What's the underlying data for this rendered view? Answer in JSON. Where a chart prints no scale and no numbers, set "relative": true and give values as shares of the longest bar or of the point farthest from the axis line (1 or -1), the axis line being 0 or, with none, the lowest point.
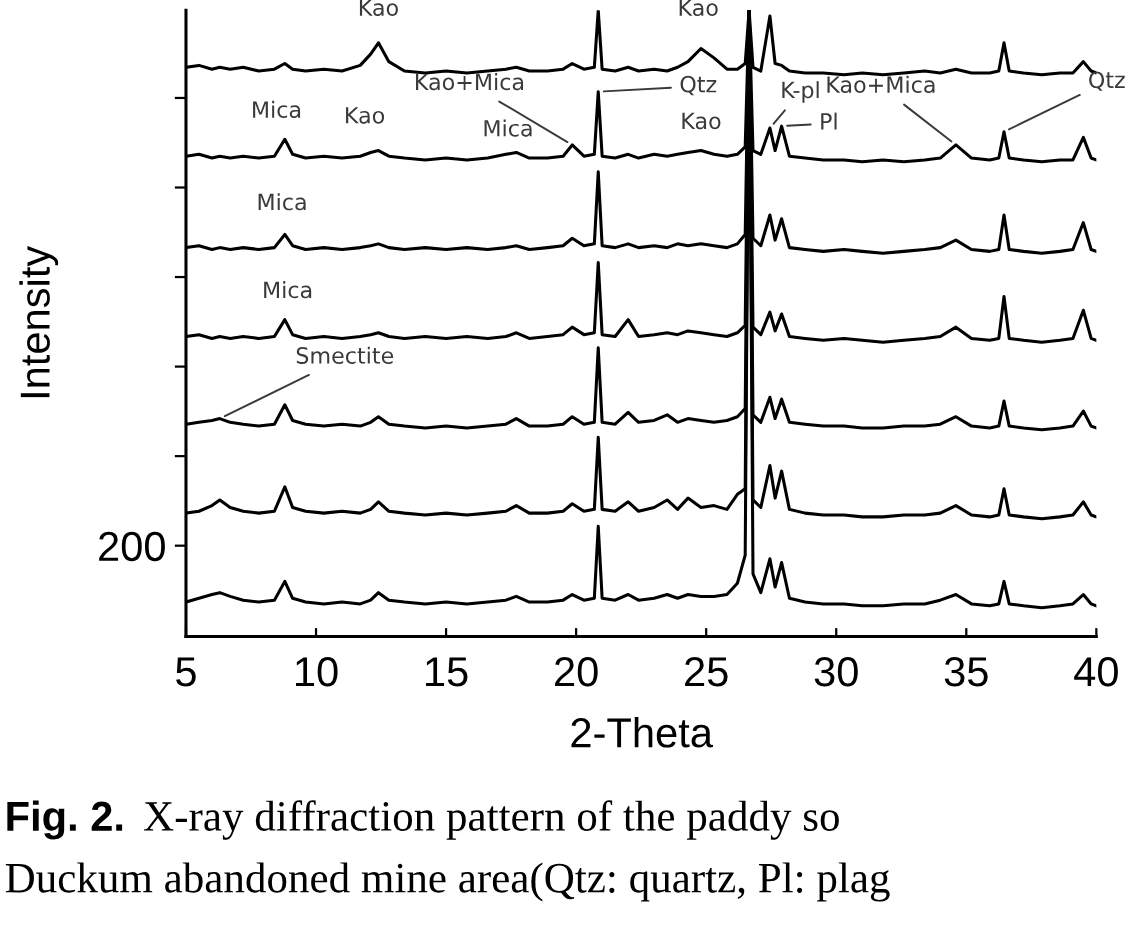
{
  "chart_data": {
    "type": "line",
    "xlabel": "2-Theta",
    "ylabel": "Intensity",
    "relative": true,
    "xlim": [
      5,
      40
    ],
    "xticks": [
      5,
      10,
      15,
      20,
      25,
      30,
      35,
      40
    ],
    "x": [
      5.0,
      5.5,
      6.0,
      6.3,
      6.7,
      7.2,
      7.8,
      8.4,
      8.8,
      9.1,
      9.6,
      10.3,
      11.0,
      11.7,
      12.1,
      12.4,
      12.8,
      13.4,
      14.2,
      15.0,
      15.8,
      16.6,
      17.3,
      17.7,
      18.2,
      18.9,
      19.5,
      19.85,
      20.3,
      20.7,
      20.85,
      21.0,
      21.5,
      22.0,
      22.4,
      23.0,
      23.5,
      23.9,
      24.3,
      24.8,
      25.3,
      25.8,
      26.2,
      26.5,
      26.65,
      26.8,
      27.1,
      27.45,
      27.65,
      27.9,
      28.2,
      28.8,
      29.5,
      30.3,
      31.0,
      31.8,
      32.6,
      33.4,
      34.0,
      34.6,
      35.2,
      35.9,
      36.25,
      36.45,
      36.65,
      37.2,
      37.9,
      38.6,
      39.1,
      39.5,
      39.8,
      40.0
    ],
    "series": [
      {
        "color": "#000000",
        "values": [
          0.909,
          0.912,
          0.906,
          0.909,
          0.906,
          0.909,
          0.903,
          0.906,
          0.915,
          0.906,
          0.903,
          0.906,
          0.903,
          0.912,
          0.93,
          0.948,
          0.918,
          0.903,
          0.9,
          0.903,
          0.9,
          0.903,
          0.906,
          0.909,
          0.903,
          0.903,
          0.906,
          0.915,
          0.906,
          0.909,
          1.0,
          0.906,
          0.903,
          0.909,
          0.903,
          0.906,
          0.903,
          0.909,
          0.918,
          0.939,
          0.924,
          0.906,
          0.906,
          0.915,
          1.0,
          0.909,
          0.903,
          0.991,
          0.915,
          0.912,
          0.903,
          0.9,
          0.9,
          0.897,
          0.9,
          0.897,
          0.9,
          0.903,
          0.9,
          0.906,
          0.9,
          0.9,
          0.903,
          0.948,
          0.903,
          0.9,
          0.897,
          0.9,
          0.9,
          0.918,
          0.903,
          0.9
        ]
      },
      {
        "color": "#000000",
        "values": [
          0.767,
          0.77,
          0.764,
          0.767,
          0.764,
          0.767,
          0.764,
          0.767,
          0.794,
          0.77,
          0.764,
          0.767,
          0.764,
          0.767,
          0.773,
          0.776,
          0.767,
          0.764,
          0.761,
          0.764,
          0.761,
          0.764,
          0.77,
          0.773,
          0.764,
          0.764,
          0.767,
          0.785,
          0.767,
          0.77,
          0.87,
          0.767,
          0.764,
          0.77,
          0.764,
          0.77,
          0.767,
          0.77,
          0.773,
          0.776,
          0.77,
          0.767,
          0.77,
          0.782,
          1.0,
          0.776,
          0.77,
          0.812,
          0.776,
          0.815,
          0.767,
          0.764,
          0.761,
          0.761,
          0.758,
          0.761,
          0.758,
          0.761,
          0.764,
          0.785,
          0.764,
          0.761,
          0.764,
          0.806,
          0.764,
          0.761,
          0.758,
          0.761,
          0.761,
          0.797,
          0.764,
          0.761
        ]
      },
      {
        "color": "#000000",
        "values": [
          0.621,
          0.624,
          0.618,
          0.621,
          0.618,
          0.621,
          0.618,
          0.621,
          0.642,
          0.624,
          0.618,
          0.621,
          0.618,
          0.621,
          0.624,
          0.627,
          0.621,
          0.618,
          0.621,
          0.618,
          0.621,
          0.618,
          0.621,
          0.624,
          0.618,
          0.621,
          0.624,
          0.636,
          0.624,
          0.627,
          0.742,
          0.624,
          0.621,
          0.627,
          0.621,
          0.624,
          0.621,
          0.627,
          0.624,
          0.627,
          0.624,
          0.621,
          0.627,
          0.642,
          1.0,
          0.636,
          0.624,
          0.673,
          0.633,
          0.667,
          0.621,
          0.618,
          0.615,
          0.618,
          0.615,
          0.612,
          0.615,
          0.618,
          0.621,
          0.633,
          0.618,
          0.615,
          0.618,
          0.673,
          0.618,
          0.615,
          0.612,
          0.615,
          0.618,
          0.661,
          0.618,
          0.615
        ]
      },
      {
        "color": "#000000",
        "values": [
          0.479,
          0.482,
          0.476,
          0.479,
          0.476,
          0.479,
          0.476,
          0.479,
          0.506,
          0.482,
          0.476,
          0.479,
          0.476,
          0.479,
          0.482,
          0.485,
          0.479,
          0.476,
          0.479,
          0.476,
          0.479,
          0.476,
          0.479,
          0.485,
          0.476,
          0.479,
          0.482,
          0.494,
          0.482,
          0.485,
          0.597,
          0.482,
          0.479,
          0.506,
          0.479,
          0.482,
          0.485,
          0.482,
          0.488,
          0.485,
          0.482,
          0.479,
          0.485,
          0.497,
          1.0,
          0.494,
          0.482,
          0.518,
          0.488,
          0.515,
          0.479,
          0.476,
          0.473,
          0.476,
          0.473,
          0.47,
          0.473,
          0.476,
          0.479,
          0.494,
          0.476,
          0.473,
          0.476,
          0.543,
          0.476,
          0.473,
          0.47,
          0.473,
          0.476,
          0.521,
          0.476,
          0.473
        ]
      },
      {
        "color": "#000000",
        "values": [
          0.339,
          0.342,
          0.345,
          0.348,
          0.342,
          0.339,
          0.336,
          0.339,
          0.37,
          0.345,
          0.339,
          0.336,
          0.339,
          0.336,
          0.342,
          0.351,
          0.339,
          0.336,
          0.333,
          0.336,
          0.333,
          0.336,
          0.339,
          0.348,
          0.336,
          0.336,
          0.339,
          0.351,
          0.339,
          0.342,
          0.461,
          0.342,
          0.339,
          0.358,
          0.342,
          0.345,
          0.354,
          0.342,
          0.348,
          0.345,
          0.342,
          0.345,
          0.351,
          0.364,
          1.0,
          0.354,
          0.342,
          0.382,
          0.348,
          0.379,
          0.342,
          0.339,
          0.336,
          0.336,
          0.333,
          0.333,
          0.336,
          0.336,
          0.339,
          0.351,
          0.336,
          0.333,
          0.336,
          0.376,
          0.336,
          0.333,
          0.33,
          0.333,
          0.336,
          0.36,
          0.336,
          0.333
        ]
      },
      {
        "color": "#000000",
        "values": [
          0.197,
          0.2,
          0.209,
          0.218,
          0.206,
          0.2,
          0.197,
          0.2,
          0.239,
          0.206,
          0.2,
          0.197,
          0.2,
          0.197,
          0.203,
          0.215,
          0.2,
          0.197,
          0.194,
          0.197,
          0.194,
          0.197,
          0.2,
          0.209,
          0.197,
          0.197,
          0.2,
          0.212,
          0.2,
          0.203,
          0.318,
          0.203,
          0.2,
          0.215,
          0.2,
          0.206,
          0.218,
          0.203,
          0.221,
          0.206,
          0.209,
          0.203,
          0.227,
          0.236,
          1.0,
          0.218,
          0.206,
          0.273,
          0.221,
          0.264,
          0.203,
          0.197,
          0.194,
          0.194,
          0.191,
          0.191,
          0.194,
          0.194,
          0.197,
          0.209,
          0.194,
          0.191,
          0.194,
          0.236,
          0.194,
          0.191,
          0.188,
          0.191,
          0.194,
          0.215,
          0.194,
          0.191
        ]
      },
      {
        "color": "#000000",
        "values": [
          0.055,
          0.061,
          0.067,
          0.07,
          0.064,
          0.058,
          0.055,
          0.058,
          0.088,
          0.061,
          0.055,
          0.052,
          0.055,
          0.052,
          0.058,
          0.07,
          0.058,
          0.055,
          0.052,
          0.055,
          0.052,
          0.055,
          0.058,
          0.064,
          0.055,
          0.055,
          0.058,
          0.067,
          0.058,
          0.061,
          0.176,
          0.061,
          0.058,
          0.067,
          0.058,
          0.061,
          0.067,
          0.061,
          0.067,
          0.064,
          0.064,
          0.067,
          0.085,
          0.13,
          1.0,
          0.1,
          0.07,
          0.124,
          0.079,
          0.118,
          0.061,
          0.055,
          0.052,
          0.052,
          0.049,
          0.049,
          0.052,
          0.052,
          0.058,
          0.067,
          0.052,
          0.049,
          0.052,
          0.088,
          0.052,
          0.049,
          0.046,
          0.049,
          0.052,
          0.067,
          0.052,
          0.049
        ]
      }
    ],
    "annotations": [
      {
        "text": "Kao",
        "x": 12.4,
        "y": 0.948
      },
      {
        "text": "Kao",
        "x": 24.8,
        "y": 0.939
      },
      {
        "text": "Mica",
        "x": 8.8,
        "y": 0.794
      },
      {
        "text": "Kao",
        "x": 12.4,
        "y": 0.776
      },
      {
        "text": "Kao+Mica",
        "x": 19.85,
        "y": 0.785
      },
      {
        "text": "Mica",
        "x": 17.7,
        "y": 0.773
      },
      {
        "text": "Qtz",
        "x": 20.85,
        "y": 0.87
      },
      {
        "text": "Kao",
        "x": 24.8,
        "y": 0.776
      },
      {
        "text": "K-pl",
        "x": 27.45,
        "y": 0.812
      },
      {
        "text": "Pl",
        "x": 27.9,
        "y": 0.815
      },
      {
        "text": "Kao+Mica",
        "x": 34.6,
        "y": 0.785
      },
      {
        "text": "Qtz",
        "x": 36.45,
        "y": 0.806
      },
      {
        "text": "Mica",
        "x": 8.8,
        "y": 0.642
      },
      {
        "text": "Mica",
        "x": 8.8,
        "y": 0.506
      },
      {
        "text": "Smectite",
        "x": 6.3,
        "y": 0.348
      },
      "200",
      "Fig. 2.",
      "X-ray diffraction pattern of the paddy so",
      "Duckum abandoned mine area(Qtz: quartz, Pl: plag"
    ]
  }
}
